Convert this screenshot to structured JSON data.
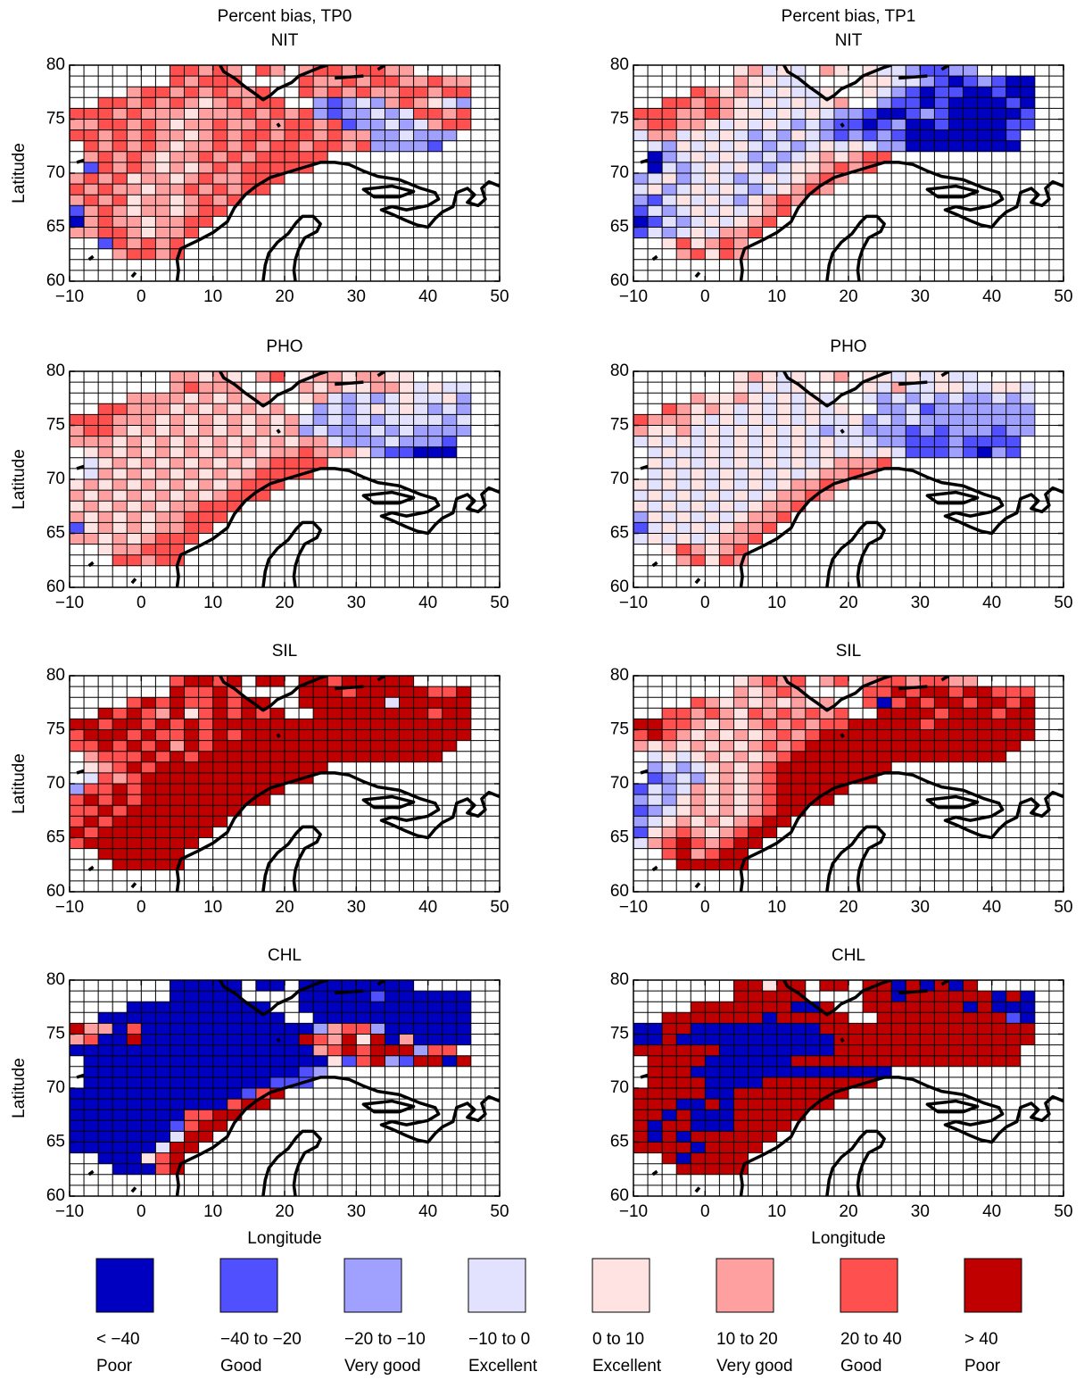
{
  "chart_data": [
    {
      "type": "heatmap",
      "title": "Percent bias, TP0",
      "subtitle": "NIT",
      "ylabel": "Latitude",
      "xlim": [
        -10,
        50
      ],
      "ylim": [
        60,
        80
      ],
      "xticks": [
        {
          "value": -10,
          "label": "−10"
        },
        0,
        10,
        20,
        30,
        40,
        50
      ],
      "yticks": [
        60,
        65,
        70,
        75,
        80
      ],
      "rows": [
        ".......66565.65.56656655......",
        ".......65666....655656655655..",
        "....5665656556..656565566566..",
        "..6656565456566..21232565432..",
        "6665655545556565621223236656..",
        "5566565455655656656122323566..",
        "665656554565665665655223222...",
        ".6565654556565665665622221....",
        ".56565455656566666............",
        ".1656545456566666.............",
        "565645545655666...............",
        "65655455656566................",
        "565645545656..................",
        "15654554566...................",
        "0565545566....................",
        "556654556.....................",
        "..165656......................",
        "...56656......................",
        "..............................",
        ".............................."
      ]
    },
    {
      "type": "heatmap",
      "title": "Percent bias, TP1",
      "subtitle": "NIT",
      "xlim": [
        -10,
        50
      ],
      "ylim": [
        60,
        80
      ],
      "xticks": [
        {
          "value": -10,
          "label": "−10"
        },
        0,
        10,
        20,
        30,
        40,
        50
      ],
      "yticks": [
        60,
        65,
        70,
        75,
        80
      ],
      "rows": [
        ".......45343.54.43321122......",
        ".......54433....443321012100..",
        "....6545434334..432101100100..",
        "..6656543434345..21101000010..",
        "6665565443434322100121000001..",
        "5665543434323211012001000011..",
        "355343432324321212100000001...",
        ".32434343232343432200000000....",
        ".02343432323454566............",
        ".0323434323445656.............",
        "234234323434565...............",
        "34234343234565................",
        "213434324565..................",
        "13234343456...................",
        "0132343456....................",
        "132343556.....................",
        "..464565......................",
        "...56465......................",
        "..............................",
        ".............................."
      ]
    },
    {
      "type": "heatmap",
      "title": "PHO",
      "ylabel": "Latitude",
      "xlim": [
        -10,
        50
      ],
      "ylim": [
        60,
        80
      ],
      "xticks": [
        {
          "value": -10,
          "label": "−10"
        },
        0,
        10,
        20,
        30,
        40,
        50
      ],
      "yticks": [
        60,
        65,
        70,
        75,
        80
      ],
      "rows": [
        ".......55454.56.45545544......",
        ".......56555....545445543433..",
        "....5555454545..453232343342..",
        "..6655545454545..23234343232..",
        "6665554545454545323232333323..",
        "5665454545454545232223232222..",
        "555454545454545455322232221...",
        ".454545454545455655542110 0....",
        ".34545454545456666............",
        ".3545454545456666.............",
        "454545454545666...............",
        "54545454545666................",
        "454545455666..................",
        "54545455666...................",
        "1454545566....................",
        "554545666.....................",
        "..455666......................",
        "...66566......................",
        "..............................",
        ".............................."
      ]
    },
    {
      "type": "heatmap",
      "title": "PHO",
      "xlim": [
        -10,
        50
      ],
      "ylim": [
        60,
        80
      ],
      "xticks": [
        {
          "value": -10,
          "label": "−10"
        },
        0,
        10,
        20,
        30,
        40,
        50
      ],
      "yticks": [
        60,
        65,
        70,
        75,
        80
      ],
      "rows": [
        ".......45434.45.44343433......",
        ".......43434....435334433443..",
        "....5445434343..323232322323..",
        "..6545434343434..22312222222..",
        "6555434343434334232322222222..",
        "5445343434343233222121222122..",
        "343434343434343332211121111...",
        ".34334343434343434311121 21....",
        ".43434343434345556............",
        ".3434343434345565.............",
        "434343434345565...............",
        "34343434345565................",
        "434343434556..................",
        "24343434556...................",
        "1343434556....................",
        "343434556.....................",
        "..465456......................",
        "...56465......................",
        "..............................",
        ".............................."
      ]
    },
    {
      "type": "heatmap",
      "title": "SIL",
      "ylabel": "Latitude",
      "xlim": [
        -10,
        50
      ],
      "ylim": [
        60,
        80
      ],
      "xticks": [
        {
          "value": -10,
          "label": "−10"
        },
        0,
        10,
        20,
        30,
        40,
        50
      ],
      "yticks": [
        60,
        65,
        70,
        75,
        80
      ],
      "rows": [
        ".......67767.77.77677777......",
        ".......76676....777677777667..",
        "....6767667677..777777377777..",
        "..7676574676767..77777777677..",
        "7767767676777777777777777777..",
        "6777676676767777777777777777..",
        "667676757677777777777777777...",
        ".5666767677777777777777777....",
        ".45676777777777777............",
        ".3656777777777777.............",
        "266767777777777...............",
        "67676777777777................",
        "667677777777..................",
        "67677777777...................",
        "7677777777....................",
        "677777777.....................",
        "..777777......................",
        "...77777......................",
        "..............................",
        ".............................."
      ]
    },
    {
      "type": "heatmap",
      "title": "SIL",
      "xlim": [
        -10,
        50
      ],
      "ylim": [
        60,
        80
      ],
      "xticks": [
        {
          "value": -10,
          "label": "−10"
        },
        0,
        10,
        20,
        30,
        40,
        50
      ],
      "yticks": [
        60,
        65,
        70,
        75,
        80
      ],
      "rows": [
        ".......45656.56.56656655......",
        ".......54565....667677677666..",
        "....6545454545..606767767767..",
        "..6656546565656..77776777677..",
        "7766545456565667777767777777..",
        "6765454545656777777777777777..",
        "545454545656777777777777777...",
        ".3434545456777777777777777....",
        ".23234545677777777............",
        ".1232454567777777.............",
        "132354545677777...............",
        "23245454567777................",
        "123454545677..................",
        "23454545677...................",
        "1456545677....................",
        "356765677.....................",
        "..675677......................",
        "...77777......................",
        "..............................",
        ".............................."
      ]
    },
    {
      "type": "heatmap",
      "title": "CHL",
      "ylabel": "Latitude",
      "xlabel": "Longitude",
      "xlim": [
        -10,
        50
      ],
      "ylim": [
        60,
        80
      ],
      "xticks": [
        {
          "value": -10,
          "label": "−10"
        },
        0,
        10,
        20,
        30,
        40,
        50
      ],
      "yticks": [
        60,
        65,
        70,
        75,
        80
      ],
      "rows": [
        ".......00000.00.00000000......",
        ".......00000....000001000000..",
        "....0000000000..000000000000..",
        "..0000000000000..00000000000..",
        "7550600000000000025662000000..",
        "5600700000000000765747050000..",
        "000000000000000005676777266...",
        ".0000000000000000041672177 7....",
        ".00000000000000012............",
        ".0000000000000111.............",
        "000000000000167...............",
        "00000000000677................",
        "000000006677..................",
        "00000001677...................",
        "0000000377....................",
        "000000377.....................",
        "..000467......................",
        "...00067......................",
        "..............................",
        ".............................."
      ]
    },
    {
      "type": "heatmap",
      "title": "CHL",
      "xlabel": "Longitude",
      "xlim": [
        -10,
        50
      ],
      "ylim": [
        60,
        80
      ],
      "xticks": [
        {
          "value": -10,
          "label": "−10"
        },
        0,
        10,
        20,
        30,
        40,
        50
      ],
      "yticks": [
        60,
        65,
        70,
        75,
        80
      ],
      "rows": [
        ".......77477.77.77070707......",
        ".......77777....770777777070..",
        "....7777777007..777777707000..",
        "..7777777077777..77777777710..",
        "0077000000000777777777777777..",
        "0070000000000077777777777777..",
        "777777000000007777777777777...",
        ".77770000007777777777777777....",
        ".77700000000000000............",
        ".7777000077777777.............",
        "777770077777777...............",
        "77700707777777................",
        "770700077777..................",
        "70770007777...................",
        "7070777777....................",
        "777707777.....................",
        "..707777......................",
        "...77777......................",
        "..............................",
        ".............................."
      ]
    }
  ],
  "legend": [
    {
      "range": "< −40",
      "quality": "Poor",
      "color": "#0000c0"
    },
    {
      "range": "−40 to −20",
      "quality": "Good",
      "color": "#5050ff"
    },
    {
      "range": "−20 to −10",
      "quality": "Very good",
      "color": "#a0a0ff"
    },
    {
      "range": "−10 to 0",
      "quality": "Excellent",
      "color": "#e2e2ff"
    },
    {
      "range": "0 to 10",
      "quality": "Excellent",
      "color": "#ffe2e2"
    },
    {
      "range": "10 to 20",
      "quality": "Very good",
      "color": "#ffa0a0"
    },
    {
      "range": "20 to 40",
      "quality": "Good",
      "color": "#ff5050"
    },
    {
      "range": "> 40",
      "quality": "Poor",
      "color": "#c00000"
    }
  ]
}
